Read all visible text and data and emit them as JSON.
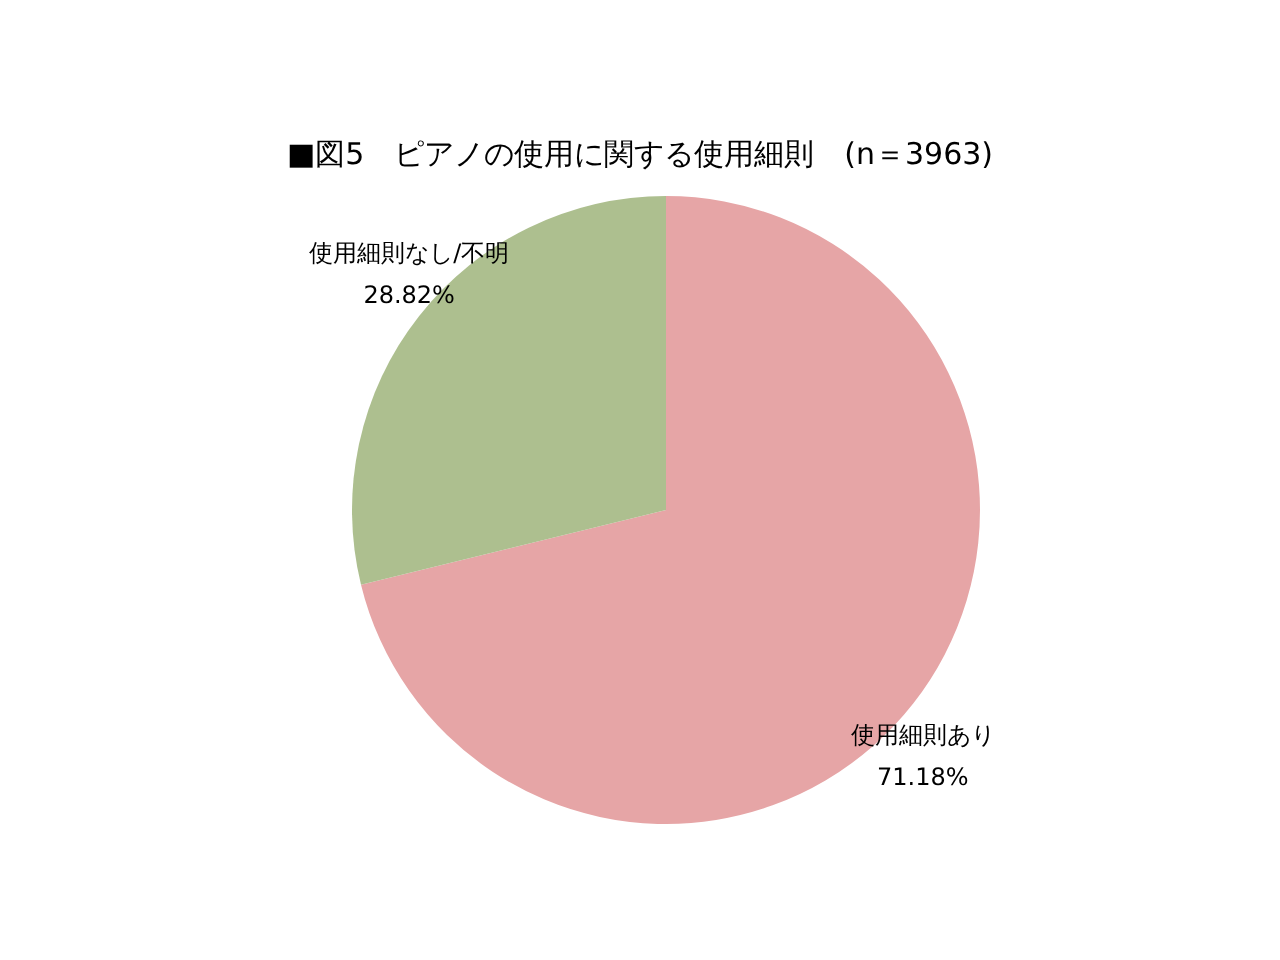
{
  "chart_data": {
    "type": "pie",
    "title": "■図5　ピアノの使用に関する使用細則　(n＝3963)",
    "categories": [
      "使用細則あり",
      "使用細則なし/不明"
    ],
    "values": [
      71.18,
      28.82
    ],
    "value_labels": [
      "71.18%",
      "28.82%"
    ],
    "colors": [
      "#e6a5a6",
      "#adbf8f"
    ]
  }
}
